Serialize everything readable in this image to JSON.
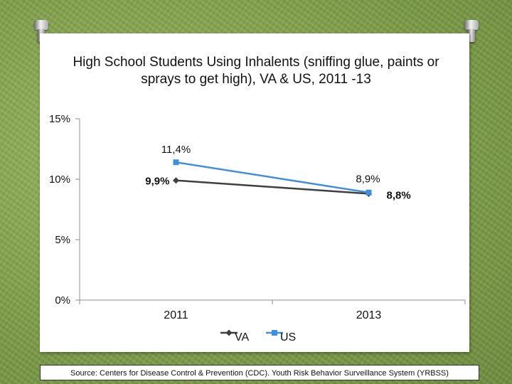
{
  "chart_data": {
    "type": "line",
    "title": "High School Students Using Inhalents (sniffing glue, paints or sprays to get high), VA & US, 2011 -13",
    "categories": [
      "2011",
      "2013"
    ],
    "series": [
      {
        "name": "VA",
        "values": [
          9.9,
          8.8
        ],
        "labels": [
          "9,9%",
          "8,8%"
        ],
        "color": "#3f3f3f",
        "marker": "diamond"
      },
      {
        "name": "US",
        "values": [
          11.4,
          8.9
        ],
        "labels": [
          "11,4%",
          "8,9%"
        ],
        "color": "#3d8fe0",
        "marker": "square"
      }
    ],
    "y_ticks": [
      0,
      5,
      10,
      15
    ],
    "y_tick_labels": [
      "0%",
      "5%",
      "10%",
      "15%"
    ],
    "ylim": [
      0,
      15
    ],
    "grid": false,
    "legend_position": "bottom"
  },
  "source": "Source: Centers for Disease Control & Prevention (CDC). Youth Risk Behavior Surveillance System (YRBSS)",
  "background_color": "#7fa04a"
}
